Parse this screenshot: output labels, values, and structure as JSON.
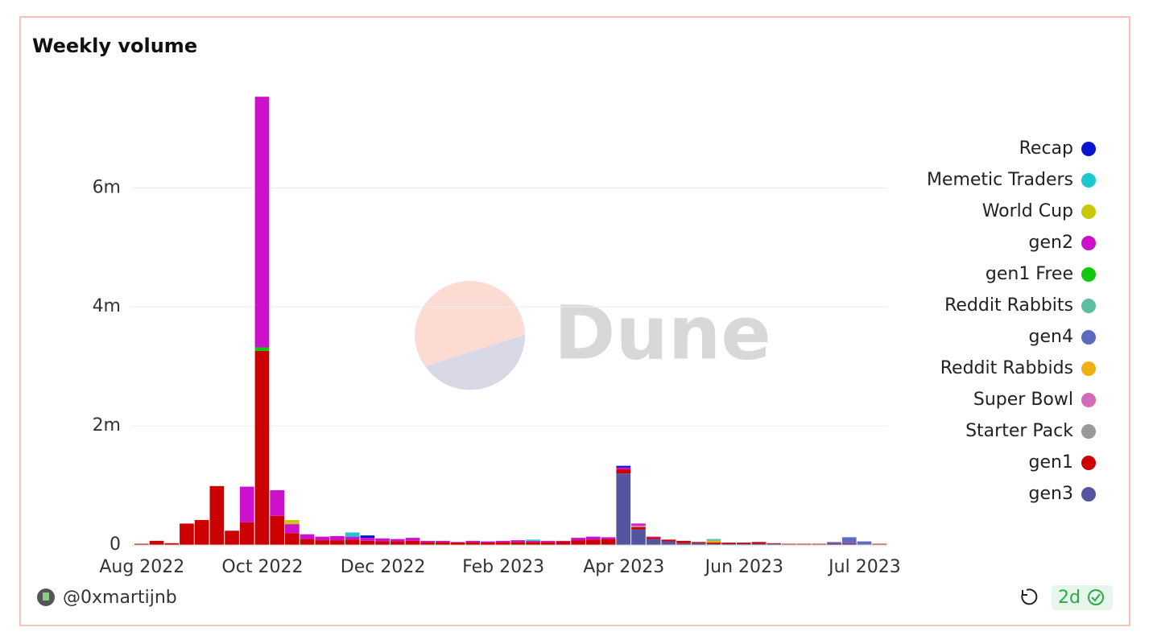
{
  "chart_data": {
    "type": "stacked_bar",
    "title": "Weekly volume",
    "categories": [
      "Aug 2022",
      null,
      null,
      null,
      null,
      null,
      null,
      null,
      "Oct 2022",
      null,
      null,
      null,
      null,
      null,
      null,
      null,
      "Dec 2022",
      null,
      null,
      null,
      null,
      null,
      null,
      null,
      "Feb 2023",
      null,
      null,
      null,
      null,
      null,
      null,
      null,
      "Apr 2023",
      null,
      null,
      null,
      null,
      null,
      null,
      null,
      "Jun 2023",
      null,
      null,
      null,
      null,
      null,
      null,
      null,
      "Jul 2023",
      null
    ],
    "series": [
      {
        "name": "Recap",
        "color": "#0a14d0",
        "values": [
          0,
          0,
          0,
          0,
          0,
          0,
          0,
          0,
          0,
          0,
          0,
          0,
          0,
          0,
          0,
          40000,
          0,
          0,
          0,
          0,
          0,
          0,
          0,
          0,
          0,
          0,
          0,
          0,
          0,
          0,
          0,
          0,
          30000,
          0,
          0,
          0,
          0,
          0,
          0,
          0,
          0,
          0,
          0,
          0,
          0,
          0,
          0,
          0,
          0,
          0
        ]
      },
      {
        "name": "Memetic Traders",
        "color": "#1cc8d0",
        "values": [
          0,
          0,
          0,
          0,
          0,
          0,
          0,
          0,
          0,
          0,
          0,
          0,
          0,
          0,
          70000,
          0,
          0,
          0,
          0,
          0,
          0,
          0,
          0,
          0,
          0,
          0,
          20000,
          0,
          0,
          0,
          0,
          0,
          0,
          0,
          0,
          0,
          0,
          0,
          0,
          0,
          0,
          0,
          0,
          0,
          0,
          0,
          0,
          0,
          0,
          0
        ]
      },
      {
        "name": "World Cup",
        "color": "#c8c80a",
        "values": [
          0,
          0,
          0,
          0,
          0,
          0,
          0,
          0,
          0,
          0,
          70000,
          0,
          0,
          0,
          0,
          0,
          0,
          0,
          0,
          0,
          0,
          0,
          0,
          0,
          0,
          0,
          0,
          0,
          0,
          0,
          0,
          0,
          0,
          0,
          0,
          0,
          0,
          0,
          0,
          0,
          0,
          0,
          0,
          0,
          0,
          0,
          0,
          0,
          0,
          0
        ]
      },
      {
        "name": "gen2",
        "color": "#cc10cc",
        "values": [
          0,
          0,
          0,
          0,
          0,
          0,
          0,
          600000,
          4210000,
          430000,
          150000,
          80000,
          60000,
          70000,
          50000,
          50000,
          50000,
          40000,
          50000,
          20000,
          20000,
          10000,
          20000,
          20000,
          20000,
          30000,
          20000,
          20000,
          10000,
          40000,
          50000,
          30000,
          30000,
          30000,
          10000,
          0,
          0,
          0,
          0,
          0,
          0,
          0,
          0,
          0,
          0,
          0,
          0,
          0,
          0,
          0
        ]
      },
      {
        "name": "gen1 Free",
        "color": "#10c810",
        "values": [
          0,
          0,
          0,
          0,
          0,
          0,
          0,
          0,
          60000,
          0,
          0,
          0,
          0,
          0,
          0,
          0,
          0,
          0,
          0,
          0,
          0,
          0,
          0,
          0,
          0,
          0,
          0,
          0,
          0,
          0,
          0,
          0,
          0,
          0,
          0,
          0,
          0,
          0,
          0,
          0,
          0,
          0,
          0,
          0,
          0,
          0,
          0,
          0,
          0,
          0
        ]
      },
      {
        "name": "Reddit Rabbits",
        "color": "#5cbfa0",
        "values": [
          0,
          0,
          0,
          0,
          0,
          0,
          0,
          0,
          0,
          0,
          0,
          0,
          0,
          0,
          0,
          0,
          0,
          0,
          0,
          0,
          0,
          0,
          0,
          0,
          0,
          0,
          0,
          0,
          0,
          0,
          0,
          0,
          0,
          0,
          0,
          0,
          0,
          0,
          30000,
          0,
          0,
          0,
          0,
          0,
          0,
          0,
          0,
          0,
          0,
          0
        ]
      },
      {
        "name": "gen4",
        "color": "#5c6bbf",
        "values": [
          0,
          0,
          0,
          0,
          0,
          0,
          0,
          0,
          0,
          0,
          0,
          0,
          0,
          0,
          0,
          0,
          0,
          0,
          0,
          0,
          0,
          0,
          0,
          0,
          0,
          0,
          0,
          0,
          0,
          0,
          0,
          0,
          0,
          0,
          0,
          0,
          0,
          0,
          0,
          0,
          0,
          0,
          0,
          0,
          0,
          0,
          20000,
          100000,
          50000,
          0
        ]
      },
      {
        "name": "Reddit Rabbids",
        "color": "#f0b010",
        "values": [
          0,
          0,
          0,
          0,
          0,
          0,
          0,
          0,
          0,
          0,
          0,
          0,
          0,
          0,
          0,
          0,
          0,
          0,
          0,
          0,
          0,
          0,
          0,
          0,
          0,
          0,
          0,
          0,
          0,
          0,
          0,
          0,
          0,
          0,
          0,
          0,
          0,
          0,
          30000,
          0,
          0,
          0,
          0,
          0,
          0,
          0,
          0,
          0,
          0,
          0
        ]
      },
      {
        "name": "Super Bowl",
        "color": "#d26bb8",
        "values": [
          0,
          0,
          0,
          0,
          0,
          0,
          0,
          0,
          0,
          0,
          0,
          0,
          0,
          0,
          0,
          0,
          0,
          0,
          0,
          0,
          0,
          0,
          0,
          0,
          0,
          0,
          0,
          0,
          0,
          0,
          0,
          0,
          0,
          20000,
          0,
          0,
          0,
          0,
          0,
          0,
          0,
          0,
          0,
          0,
          0,
          0,
          0,
          0,
          0,
          0
        ]
      },
      {
        "name": "Starter Pack",
        "color": "#999999",
        "values": [
          0,
          0,
          0,
          0,
          0,
          0,
          0,
          0,
          0,
          0,
          0,
          0,
          0,
          0,
          0,
          0,
          0,
          0,
          0,
          0,
          0,
          0,
          0,
          0,
          0,
          0,
          0,
          0,
          0,
          0,
          0,
          0,
          0,
          10000,
          0,
          0,
          0,
          0,
          0,
          0,
          0,
          0,
          0,
          0,
          0,
          0,
          0,
          0,
          0,
          0
        ]
      },
      {
        "name": "gen1",
        "color": "#cc0000",
        "values": [
          20000,
          70000,
          30000,
          360000,
          420000,
          990000,
          240000,
          380000,
          3260000,
          490000,
          200000,
          100000,
          80000,
          80000,
          90000,
          70000,
          60000,
          60000,
          70000,
          50000,
          50000,
          40000,
          50000,
          40000,
          50000,
          50000,
          50000,
          50000,
          60000,
          80000,
          90000,
          100000,
          70000,
          40000,
          30000,
          30000,
          40000,
          20000,
          20000,
          20000,
          20000,
          30000,
          10000,
          10000,
          10000,
          10000,
          10000,
          10000,
          10000,
          10000
        ]
      },
      {
        "name": "gen3",
        "color": "#54559e",
        "values": [
          0,
          0,
          0,
          0,
          0,
          0,
          0,
          0,
          0,
          0,
          0,
          0,
          0,
          0,
          0,
          0,
          0,
          0,
          0,
          0,
          0,
          0,
          0,
          0,
          0,
          0,
          0,
          0,
          0,
          0,
          0,
          0,
          1200000,
          260000,
          100000,
          60000,
          30000,
          30000,
          20000,
          20000,
          20000,
          20000,
          20000,
          10000,
          10000,
          10000,
          20000,
          20000,
          0,
          10000
        ]
      }
    ],
    "ylim": [
      0,
      7600000
    ],
    "yticks": [
      0,
      {
        "value": 2000000,
        "label": "2m"
      },
      {
        "value": 4000000,
        "label": "4m"
      },
      {
        "value": 6000000,
        "label": "6m"
      }
    ],
    "grid": true,
    "legend": "right"
  },
  "watermark": "Dune",
  "footer": {
    "author": "@0xmartijnb",
    "age": "2d"
  }
}
